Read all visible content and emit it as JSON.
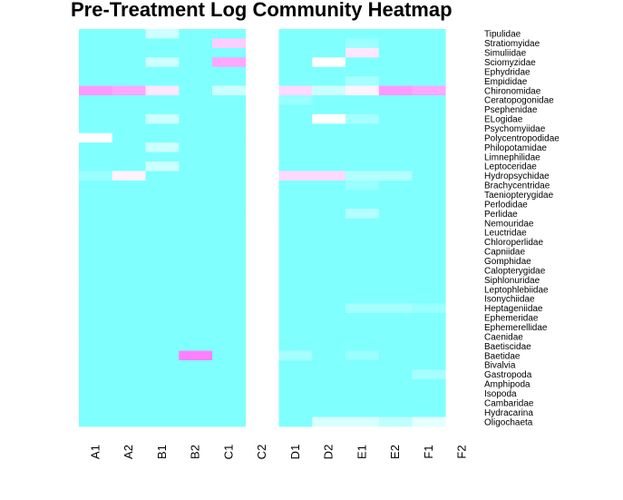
{
  "chart_data": {
    "type": "heatmap",
    "title": "Pre-Treatment Log Community Heatmap",
    "columns": [
      "A1",
      "A2",
      "B1",
      "B2",
      "C1",
      "C2",
      "D1",
      "D2",
      "E1",
      "E2",
      "F1",
      "F2"
    ],
    "rows": [
      "Tipulidae",
      "Stratiomyidae",
      "Simuliidae",
      "Sciomyzidae",
      "Ephydridae",
      "Empididae",
      "Chironomidae",
      "Ceratopogonidae",
      "Psephenidae",
      "ELogidae",
      "Psychomyiidae",
      "Polycentropodidae",
      "Philopotamidae",
      "Limnephilidae",
      "Leptoceridae",
      "Hydropsychidae",
      "Brachycentridae",
      "Taeniopterygidae",
      "Perlodidae",
      "Perlidae",
      "Nemouridae",
      "Leuctridae",
      "Chloroperlidae",
      "Capniidae",
      "Gomphidae",
      "Calopterygidae",
      "Siphlonuridae",
      "Leptophlebiidae",
      "Isonychiidae",
      "Heptageniidae",
      "Ephemeridae",
      "Ephemerellidae",
      "Caenidae",
      "Baetiscidae",
      "Baetidae",
      "Bivalvia",
      "Gastropoda",
      "Amphipoda",
      "Isopoda",
      "Cambaridae",
      "Hydracarina",
      "Oligochaeta"
    ],
    "values": [
      [
        0,
        0,
        0.3,
        0,
        0,
        0,
        0,
        0,
        0,
        0,
        0,
        0
      ],
      [
        0,
        0,
        0,
        0,
        0.7,
        0,
        0,
        0,
        0.1,
        0,
        0,
        0
      ],
      [
        0,
        0,
        0,
        0,
        0,
        0,
        0,
        0,
        0.6,
        0,
        0,
        0
      ],
      [
        0,
        0,
        0.3,
        0,
        0.85,
        0,
        0,
        0.5,
        0,
        0,
        0,
        0
      ],
      [
        0,
        0,
        0,
        0,
        0,
        0,
        0,
        0,
        0,
        0,
        0,
        0
      ],
      [
        0,
        0,
        0,
        0,
        0,
        0,
        0,
        0,
        0.15,
        0,
        0,
        0
      ],
      [
        0.9,
        0.85,
        0.6,
        0,
        0.3,
        0,
        0.65,
        0.3,
        0.55,
        0.9,
        0.85,
        0
      ],
      [
        0,
        0,
        0,
        0,
        0,
        0,
        0.1,
        0,
        0,
        0,
        0,
        0
      ],
      [
        0,
        0,
        0,
        0,
        0,
        0,
        0,
        0,
        0,
        0,
        0,
        0
      ],
      [
        0,
        0,
        0.3,
        0,
        0,
        0,
        0,
        0.5,
        0.15,
        0,
        0,
        0
      ],
      [
        0,
        0,
        0,
        0,
        0,
        0,
        0,
        0,
        0,
        0,
        0,
        0
      ],
      [
        0.5,
        0,
        0,
        0,
        0,
        0,
        0,
        0,
        0,
        0,
        0,
        0
      ],
      [
        0,
        0,
        0.3,
        0,
        0,
        0,
        0,
        0,
        0,
        0,
        0,
        0
      ],
      [
        0,
        0,
        0,
        0,
        0,
        0,
        0,
        0,
        0,
        0,
        0,
        0
      ],
      [
        0,
        0,
        0.3,
        0,
        0,
        0,
        0,
        0,
        0,
        0,
        0,
        0
      ],
      [
        0.1,
        0.55,
        0,
        0,
        0,
        0,
        0.65,
        0.65,
        0.2,
        0.2,
        0,
        0
      ],
      [
        0,
        0,
        0,
        0,
        0,
        0,
        0,
        0,
        0.1,
        0,
        0,
        0
      ],
      [
        0,
        0,
        0,
        0,
        0,
        0,
        0,
        0,
        0,
        0,
        0,
        0
      ],
      [
        0,
        0,
        0,
        0,
        0,
        0,
        0,
        0,
        0,
        0,
        0,
        0
      ],
      [
        0,
        0,
        0,
        0,
        0,
        0,
        0,
        0,
        0.2,
        0,
        0,
        0
      ],
      [
        0,
        0,
        0,
        0,
        0,
        0,
        0,
        0,
        0,
        0,
        0,
        0
      ],
      [
        0,
        0,
        0,
        0,
        0,
        0,
        0,
        0,
        0,
        0,
        0,
        0
      ],
      [
        0,
        0,
        0,
        0,
        0,
        0,
        0,
        0,
        0,
        0,
        0,
        0
      ],
      [
        0,
        0,
        0,
        0,
        0,
        0,
        0,
        0,
        0,
        0,
        0,
        0
      ],
      [
        0,
        0,
        0,
        0,
        0,
        0,
        0,
        0,
        0,
        0,
        0,
        0
      ],
      [
        0,
        0,
        0,
        0,
        0,
        0,
        0,
        0,
        0,
        0,
        0,
        0
      ],
      [
        0,
        0,
        0,
        0,
        0,
        0,
        0,
        0,
        0,
        0,
        0,
        0
      ],
      [
        0,
        0,
        0,
        0,
        0,
        0,
        0,
        0,
        0,
        0,
        0,
        0
      ],
      [
        0,
        0,
        0,
        0,
        0,
        0,
        0,
        0,
        0,
        0,
        0,
        0
      ],
      [
        0,
        0,
        0,
        0,
        0,
        0,
        0,
        0,
        0.15,
        0.15,
        0.1,
        0
      ],
      [
        0,
        0,
        0,
        0,
        0,
        0,
        0,
        0,
        0,
        0,
        0,
        0
      ],
      [
        0,
        0,
        0,
        0,
        0,
        0,
        0,
        0,
        0,
        0,
        0,
        0
      ],
      [
        0,
        0,
        0,
        0,
        0,
        0,
        0,
        0,
        0,
        0,
        0,
        0
      ],
      [
        0,
        0,
        0,
        0,
        0,
        0,
        0,
        0,
        0,
        0,
        0,
        0
      ],
      [
        0,
        0,
        0,
        1,
        0,
        0,
        0.15,
        0,
        0.1,
        0,
        0,
        0
      ],
      [
        0,
        0,
        0,
        0,
        0,
        0,
        0,
        0,
        0,
        0,
        0,
        0
      ],
      [
        0,
        0,
        0,
        0,
        0,
        0,
        0,
        0,
        0,
        0,
        0.15,
        0
      ],
      [
        0,
        0,
        0,
        0,
        0,
        0,
        0,
        0,
        0,
        0,
        0,
        0
      ],
      [
        0,
        0,
        0,
        0,
        0,
        0,
        0,
        0,
        0,
        0,
        0,
        0
      ],
      [
        0,
        0,
        0,
        0,
        0,
        0,
        0,
        0,
        0,
        0,
        0,
        0
      ],
      [
        0,
        0,
        0,
        0,
        0,
        0,
        0,
        0,
        0,
        0,
        0,
        0
      ],
      [
        0,
        0,
        0,
        0,
        0,
        0,
        0,
        0.35,
        0.35,
        0.25,
        0.4,
        0
      ]
    ],
    "blank_columns": [
      "C2",
      "F2"
    ],
    "color_low": "#80FFFF",
    "color_mid": "#FFFFFF",
    "color_high": "#FF80FF",
    "legend": "none"
  }
}
